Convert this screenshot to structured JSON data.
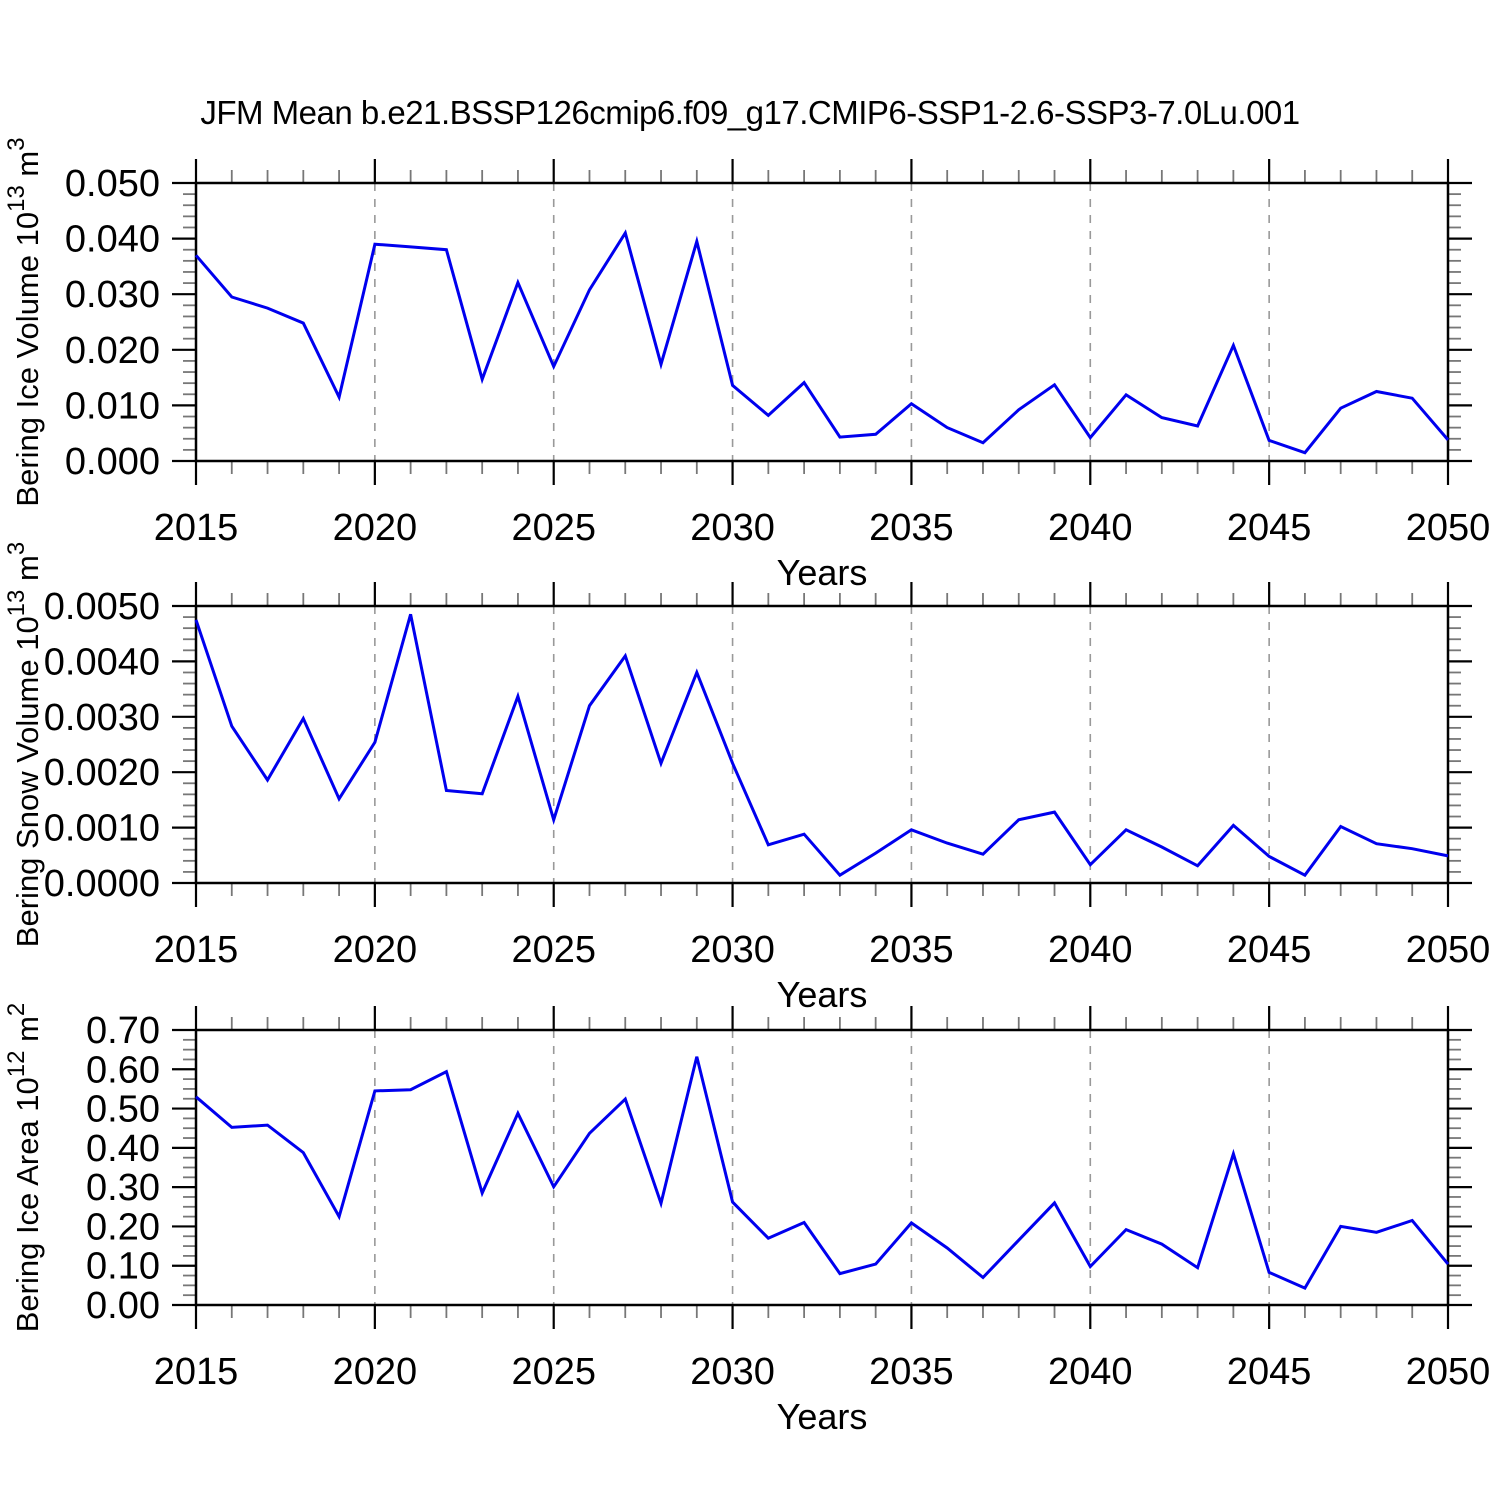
{
  "title": "JFM Mean b.e21.BSSP126cmip6.f09_g17.CMIP6-SSP1-2.6-SSP3-7.0Lu.001",
  "line_color": "#0000ee",
  "grid_color": "#999999",
  "chart_data": [
    {
      "type": "line",
      "series_name": "Bering Ice Volume",
      "ylabel": "Bering Ice Volume 10^13 m^3",
      "ylabel_parts": [
        "Bering Ice Volume 10",
        "13",
        " m",
        "3"
      ],
      "xlabel": "Years",
      "ylim": [
        0,
        0.05
      ],
      "ytick_step": 0.01,
      "yminor_divisions": 5,
      "ytick_labels": [
        "0.000",
        "0.010",
        "0.020",
        "0.030",
        "0.040",
        "0.050"
      ],
      "xtick_labels": [
        "2015",
        "2020",
        "2025",
        "2030",
        "2035",
        "2040",
        "2045",
        "2050"
      ],
      "grid_years": [
        2020,
        2025,
        2030,
        2035,
        2040,
        2045
      ],
      "x": [
        2015,
        2016,
        2017,
        2018,
        2019,
        2020,
        2021,
        2022,
        2023,
        2024,
        2025,
        2026,
        2027,
        2028,
        2029,
        2030,
        2031,
        2032,
        2033,
        2034,
        2035,
        2036,
        2037,
        2038,
        2039,
        2040,
        2041,
        2042,
        2043,
        2044,
        2045,
        2046,
        2047,
        2048,
        2049,
        2050
      ],
      "y": [
        0.037,
        0.0295,
        0.0275,
        0.0248,
        0.0115,
        0.039,
        0.0385,
        0.038,
        0.0147,
        0.0321,
        0.017,
        0.0308,
        0.041,
        0.0174,
        0.0395,
        0.0136,
        0.0082,
        0.0141,
        0.0043,
        0.0048,
        0.0103,
        0.006,
        0.0033,
        0.0092,
        0.0137,
        0.0042,
        0.0119,
        0.0078,
        0.0063,
        0.0208,
        0.0037,
        0.0015,
        0.0095,
        0.0125,
        0.0113,
        0.0038
      ]
    },
    {
      "type": "line",
      "series_name": "Bering Snow Volume",
      "ylabel": "Bering Snow Volume 10^13 m^3",
      "ylabel_parts": [
        "Bering Snow Volume 10",
        "13",
        " m",
        "3"
      ],
      "xlabel": "Years",
      "ylim": [
        0,
        0.005
      ],
      "ytick_step": 0.001,
      "yminor_divisions": 5,
      "ytick_labels": [
        "0.0000",
        "0.0010",
        "0.0020",
        "0.0030",
        "0.0040",
        "0.0050"
      ],
      "xtick_labels": [
        "2015",
        "2020",
        "2025",
        "2030",
        "2035",
        "2040",
        "2045",
        "2050"
      ],
      "grid_years": [
        2020,
        2025,
        2030,
        2035,
        2040,
        2045
      ],
      "x": [
        2015,
        2016,
        2017,
        2018,
        2019,
        2020,
        2021,
        2022,
        2023,
        2024,
        2025,
        2026,
        2027,
        2028,
        2029,
        2030,
        2031,
        2032,
        2033,
        2034,
        2035,
        2036,
        2037,
        2038,
        2039,
        2040,
        2041,
        2042,
        2043,
        2044,
        2045,
        2046,
        2047,
        2048,
        2049,
        2050
      ],
      "y": [
        0.00475,
        0.00283,
        0.00186,
        0.00297,
        0.00152,
        0.00254,
        0.00485,
        0.00167,
        0.00161,
        0.00337,
        0.00114,
        0.0032,
        0.0041,
        0.00216,
        0.0038,
        0.00216,
        0.00069,
        0.00088,
        0.00014,
        0.00054,
        0.00096,
        0.00072,
        0.00052,
        0.00114,
        0.00128,
        0.00033,
        0.00096,
        0.00065,
        0.00031,
        0.00104,
        0.00048,
        0.00014,
        0.00102,
        0.00071,
        0.00062,
        0.00049
      ]
    },
    {
      "type": "line",
      "series_name": "Bering Ice Area",
      "ylabel": "Bering Ice Area 10^12 m^2",
      "ylabel_parts": [
        "Bering Ice Area 10",
        "12",
        " m",
        "2"
      ],
      "xlabel": "Years",
      "ylim": [
        0,
        0.7
      ],
      "ytick_step": 0.1,
      "yminor_divisions": 4,
      "ytick_labels": [
        "0.00",
        "0.10",
        "0.20",
        "0.30",
        "0.40",
        "0.50",
        "0.60",
        "0.70"
      ],
      "xtick_labels": [
        "2015",
        "2020",
        "2025",
        "2030",
        "2035",
        "2040",
        "2045",
        "2050"
      ],
      "grid_years": [
        2020,
        2025,
        2030,
        2035,
        2040,
        2045
      ],
      "x": [
        2015,
        2016,
        2017,
        2018,
        2019,
        2020,
        2021,
        2022,
        2023,
        2024,
        2025,
        2026,
        2027,
        2028,
        2029,
        2030,
        2031,
        2032,
        2033,
        2034,
        2035,
        2036,
        2037,
        2038,
        2039,
        2040,
        2041,
        2042,
        2043,
        2044,
        2045,
        2046,
        2047,
        2048,
        2049,
        2050
      ],
      "y": [
        0.53,
        0.452,
        0.458,
        0.388,
        0.225,
        0.545,
        0.548,
        0.594,
        0.285,
        0.488,
        0.301,
        0.437,
        0.524,
        0.259,
        0.632,
        0.262,
        0.17,
        0.21,
        0.08,
        0.104,
        0.209,
        0.145,
        0.07,
        0.165,
        0.26,
        0.098,
        0.192,
        0.155,
        0.095,
        0.385,
        0.083,
        0.043,
        0.2,
        0.185,
        0.215,
        0.104
      ]
    }
  ]
}
